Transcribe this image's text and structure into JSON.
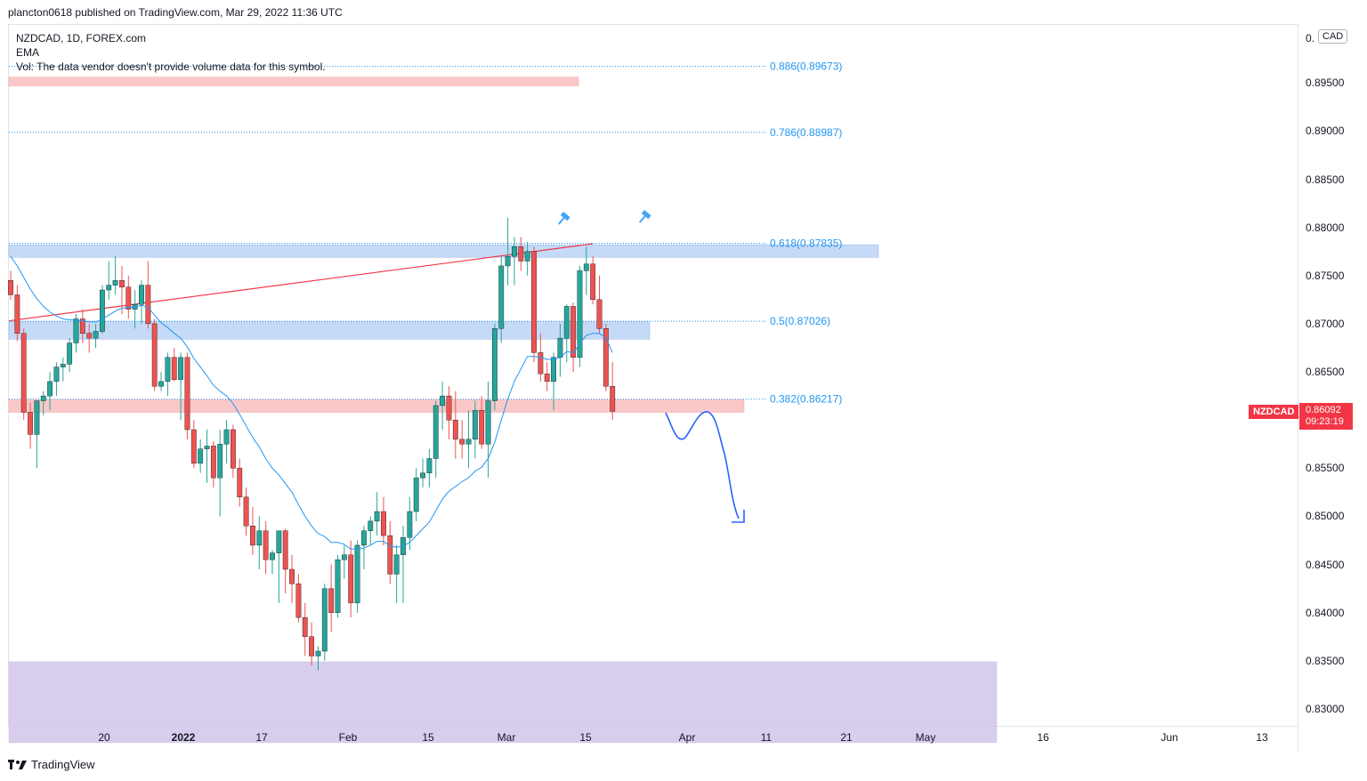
{
  "header": {
    "publisher_line": "plancton0618 published on TradingView.com, Mar 29, 2022 11:36 UTC"
  },
  "legend": {
    "symbol_line": "NZDCAD, 1D, FOREX.com",
    "indicator": "EMA",
    "volume_note": "Vol: The data vendor doesn't provide volume data for this symbol."
  },
  "price_axis": {
    "currency_prefix": "0.",
    "currency_badge": "CAD",
    "symbol_tag": "NZDCAD",
    "last_price": "0.86092",
    "countdown": "09:23:19"
  },
  "footer": {
    "brand": "TradingView"
  },
  "colors": {
    "up": "#26a69a",
    "down": "#ef5350",
    "ema": "#2196f3",
    "fib": "#2196f3",
    "trend": "#f23645",
    "zone_blue": "#bbd3f5",
    "zone_red": "#f8c0c0",
    "zone_purple": "#d1c4e9"
  },
  "chart_data": {
    "type": "candlestick",
    "title": "NZDCAD, 1D, FOREX.com",
    "ylim": [
      0.8265,
      0.9015
    ],
    "y_ticks": [
      "0.89500",
      "0.89000",
      "0.88500",
      "0.88000",
      "0.87500",
      "0.87000",
      "0.86500",
      "0.86000",
      "0.85500",
      "0.85000",
      "0.84500",
      "0.84000",
      "0.83500",
      "0.83000"
    ],
    "x_ticks": [
      "20",
      "2022",
      "17",
      "Feb",
      "15",
      "Mar",
      "15",
      "Apr",
      "11",
      "21",
      "May",
      "16",
      "Jun",
      "13"
    ],
    "fib_levels": [
      {
        "label": "0.886(0.89673)",
        "price": 0.89673
      },
      {
        "label": "0.786(0.88987)",
        "price": 0.88987
      },
      {
        "label": "0.618(0.87835)",
        "price": 0.87835
      },
      {
        "label": "0.5(0.87026)",
        "price": 0.87026
      },
      {
        "label": "0.382(0.86217)",
        "price": 0.86217
      }
    ],
    "zones": [
      {
        "color": "red",
        "from": 0.8947,
        "to": 0.8956
      },
      {
        "color": "blue",
        "from": 0.8769,
        "to": 0.8782
      },
      {
        "color": "blue",
        "from": 0.8684,
        "to": 0.8702
      },
      {
        "color": "red",
        "from": 0.8608,
        "to": 0.8621
      },
      {
        "color": "purple",
        "from": 0.8265,
        "to": 0.8349
      }
    ],
    "trendline": {
      "from": [
        0,
        0.8703
      ],
      "to": [
        89,
        0.8783
      ]
    },
    "last_price": 0.86092,
    "candles": [
      [
        0.8745,
        0.8755,
        0.8725,
        0.873
      ],
      [
        0.873,
        0.874,
        0.8682,
        0.869
      ],
      [
        0.869,
        0.8695,
        0.86,
        0.8608
      ],
      [
        0.8608,
        0.8618,
        0.857,
        0.8585
      ],
      [
        0.8585,
        0.862,
        0.855,
        0.862
      ],
      [
        0.862,
        0.863,
        0.8605,
        0.8625
      ],
      [
        0.8625,
        0.865,
        0.861,
        0.864
      ],
      [
        0.864,
        0.866,
        0.8625,
        0.8655
      ],
      [
        0.8655,
        0.8665,
        0.864,
        0.8658
      ],
      [
        0.8658,
        0.8685,
        0.865,
        0.868
      ],
      [
        0.868,
        0.871,
        0.867,
        0.8705
      ],
      [
        0.8705,
        0.8715,
        0.868,
        0.869
      ],
      [
        0.869,
        0.87,
        0.867,
        0.8685
      ],
      [
        0.8685,
        0.87,
        0.8675,
        0.8692
      ],
      [
        0.8692,
        0.874,
        0.869,
        0.8735
      ],
      [
        0.8735,
        0.8765,
        0.8725,
        0.874
      ],
      [
        0.874,
        0.877,
        0.873,
        0.8745
      ],
      [
        0.8745,
        0.876,
        0.871,
        0.8738
      ],
      [
        0.8738,
        0.875,
        0.8705,
        0.8715
      ],
      [
        0.8715,
        0.8735,
        0.8695,
        0.872
      ],
      [
        0.872,
        0.8745,
        0.87,
        0.874
      ],
      [
        0.874,
        0.8765,
        0.8695,
        0.87
      ],
      [
        0.87,
        0.8705,
        0.863,
        0.8635
      ],
      [
        0.8635,
        0.865,
        0.863,
        0.864
      ],
      [
        0.864,
        0.867,
        0.8625,
        0.8665
      ],
      [
        0.8665,
        0.8675,
        0.864,
        0.8642
      ],
      [
        0.8642,
        0.867,
        0.86,
        0.8665
      ],
      [
        0.8665,
        0.867,
        0.858,
        0.859
      ],
      [
        0.859,
        0.86,
        0.855,
        0.8555
      ],
      [
        0.8555,
        0.858,
        0.8545,
        0.857
      ],
      [
        0.857,
        0.859,
        0.8535,
        0.8573
      ],
      [
        0.8573,
        0.8578,
        0.853,
        0.854
      ],
      [
        0.854,
        0.859,
        0.85,
        0.8575
      ],
      [
        0.8575,
        0.86,
        0.8555,
        0.859
      ],
      [
        0.859,
        0.8595,
        0.854,
        0.855
      ],
      [
        0.855,
        0.856,
        0.851,
        0.852
      ],
      [
        0.852,
        0.853,
        0.848,
        0.849
      ],
      [
        0.849,
        0.851,
        0.846,
        0.847
      ],
      [
        0.847,
        0.85,
        0.8445,
        0.8485
      ],
      [
        0.8485,
        0.8495,
        0.844,
        0.8455
      ],
      [
        0.8455,
        0.8465,
        0.844,
        0.8462
      ],
      [
        0.8462,
        0.848,
        0.841,
        0.8485
      ],
      [
        0.8485,
        0.8487,
        0.842,
        0.8445
      ],
      [
        0.8445,
        0.846,
        0.841,
        0.843
      ],
      [
        0.843,
        0.844,
        0.839,
        0.8395
      ],
      [
        0.8395,
        0.841,
        0.8355,
        0.8375
      ],
      [
        0.8375,
        0.839,
        0.8345,
        0.8355
      ],
      [
        0.8355,
        0.8365,
        0.834,
        0.836
      ],
      [
        0.836,
        0.843,
        0.835,
        0.8425
      ],
      [
        0.8425,
        0.845,
        0.838,
        0.84
      ],
      [
        0.84,
        0.846,
        0.8395,
        0.8455
      ],
      [
        0.8455,
        0.847,
        0.8435,
        0.846
      ],
      [
        0.846,
        0.8475,
        0.8395,
        0.841
      ],
      [
        0.841,
        0.8475,
        0.84,
        0.847
      ],
      [
        0.847,
        0.849,
        0.8445,
        0.8485
      ],
      [
        0.8485,
        0.85,
        0.847,
        0.8495
      ],
      [
        0.8495,
        0.8525,
        0.848,
        0.8505
      ],
      [
        0.8505,
        0.852,
        0.847,
        0.848
      ],
      [
        0.848,
        0.8495,
        0.843,
        0.844
      ],
      [
        0.844,
        0.847,
        0.841,
        0.846
      ],
      [
        0.846,
        0.849,
        0.841,
        0.8478
      ],
      [
        0.8478,
        0.852,
        0.8465,
        0.8505
      ],
      [
        0.8505,
        0.855,
        0.8495,
        0.854
      ],
      [
        0.854,
        0.856,
        0.853,
        0.8545
      ],
      [
        0.8545,
        0.857,
        0.853,
        0.856
      ],
      [
        0.856,
        0.862,
        0.854,
        0.8615
      ],
      [
        0.8615,
        0.864,
        0.859,
        0.8625
      ],
      [
        0.8625,
        0.8635,
        0.858,
        0.86
      ],
      [
        0.86,
        0.863,
        0.856,
        0.858
      ],
      [
        0.858,
        0.86,
        0.856,
        0.8575
      ],
      [
        0.8575,
        0.861,
        0.855,
        0.858
      ],
      [
        0.858,
        0.862,
        0.856,
        0.861
      ],
      [
        0.861,
        0.8625,
        0.857,
        0.8575
      ],
      [
        0.8575,
        0.864,
        0.854,
        0.862
      ],
      [
        0.862,
        0.87,
        0.861,
        0.8695
      ],
      [
        0.8695,
        0.877,
        0.868,
        0.876
      ],
      [
        0.876,
        0.881,
        0.874,
        0.877
      ],
      [
        0.877,
        0.879,
        0.874,
        0.878
      ],
      [
        0.878,
        0.879,
        0.8755,
        0.8765
      ],
      [
        0.8765,
        0.8785,
        0.875,
        0.8775
      ],
      [
        0.8775,
        0.878,
        0.866,
        0.867
      ],
      [
        0.867,
        0.869,
        0.864,
        0.8648
      ],
      [
        0.8648,
        0.866,
        0.863,
        0.864
      ],
      [
        0.864,
        0.867,
        0.861,
        0.8665
      ],
      [
        0.8665,
        0.87,
        0.8645,
        0.8685
      ],
      [
        0.8685,
        0.872,
        0.866,
        0.8718
      ],
      [
        0.8718,
        0.8722,
        0.865,
        0.8665
      ],
      [
        0.8665,
        0.876,
        0.8655,
        0.8755
      ],
      [
        0.8755,
        0.878,
        0.873,
        0.8762
      ],
      [
        0.8762,
        0.877,
        0.872,
        0.8725
      ],
      [
        0.8725,
        0.875,
        0.869,
        0.8695
      ],
      [
        0.8695,
        0.87,
        0.863,
        0.8635
      ],
      [
        0.8635,
        0.866,
        0.86,
        0.8609
      ]
    ],
    "ema": [
      0.877,
      0.876,
      0.8748,
      0.8736,
      0.8726,
      0.8718,
      0.8712,
      0.8708,
      0.8705,
      0.8704,
      0.8704,
      0.8703,
      0.8702,
      0.8702,
      0.8705,
      0.8709,
      0.8713,
      0.8716,
      0.8717,
      0.8717,
      0.8719,
      0.8717,
      0.8709,
      0.8701,
      0.8696,
      0.869,
      0.8685,
      0.8676,
      0.8664,
      0.8655,
      0.8646,
      0.8636,
      0.863,
      0.8625,
      0.8617,
      0.8606,
      0.8594,
      0.8582,
      0.8572,
      0.856,
      0.855,
      0.8543,
      0.8534,
      0.8525,
      0.8512,
      0.85,
      0.849,
      0.8482,
      0.8479,
      0.8473,
      0.8473,
      0.8471,
      0.8466,
      0.8466,
      0.8467,
      0.847,
      0.8474,
      0.8474,
      0.8469,
      0.8468,
      0.8469,
      0.8473,
      0.848,
      0.8487,
      0.8494,
      0.8506,
      0.8518,
      0.8526,
      0.8531,
      0.8536,
      0.854,
      0.8547,
      0.8551,
      0.856,
      0.8577,
      0.86,
      0.8622,
      0.864,
      0.8653,
      0.8666,
      0.8666,
      0.8665,
      0.8663,
      0.8663,
      0.8665,
      0.8671,
      0.867,
      0.8679,
      0.8688,
      0.869,
      0.869,
      0.8685,
      0.867
    ]
  }
}
